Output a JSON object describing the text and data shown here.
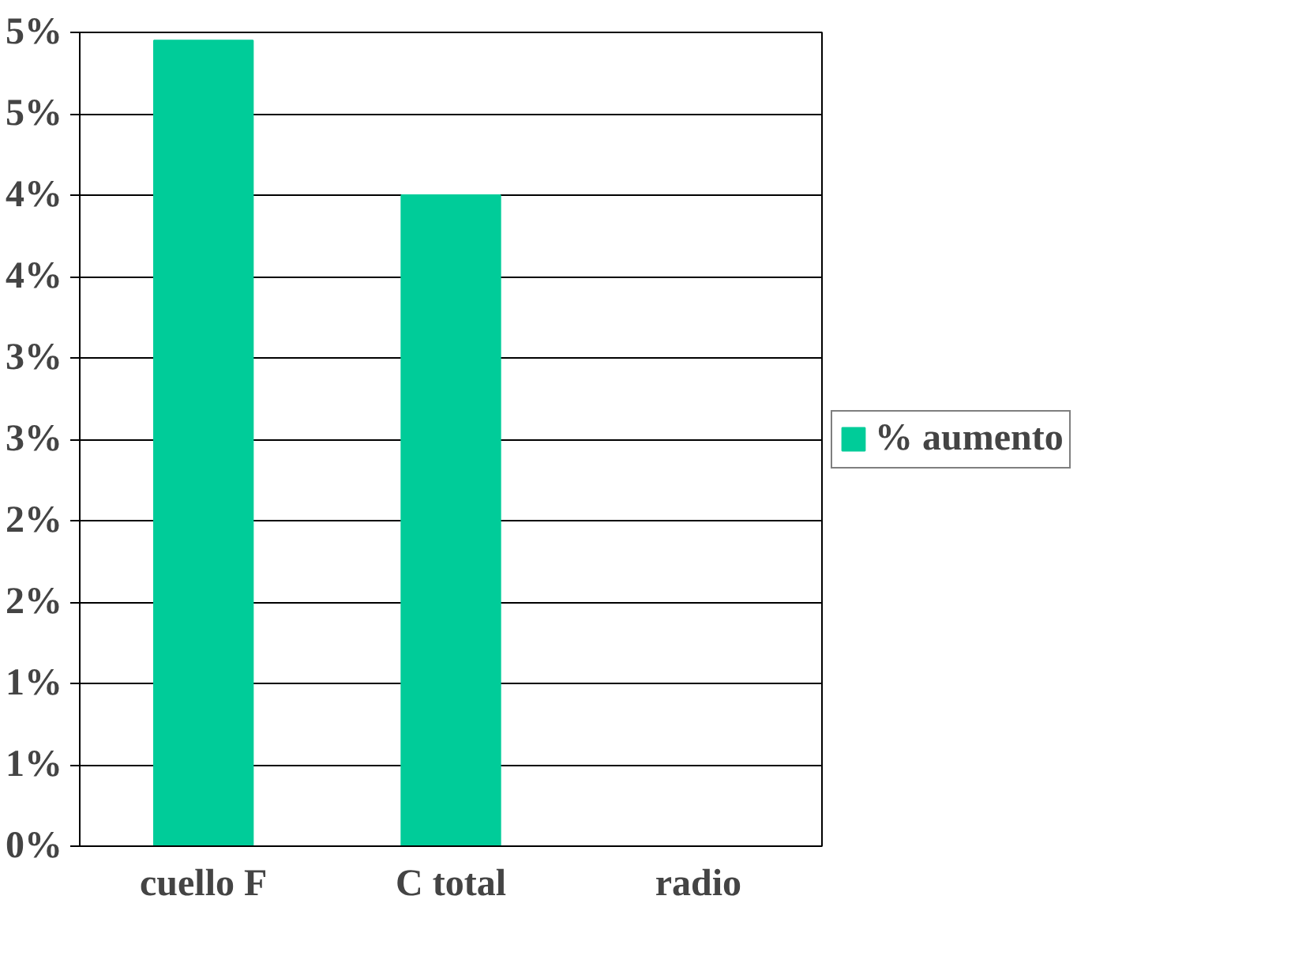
{
  "chart_data": {
    "type": "bar",
    "categories": [
      "cuello F",
      "C total",
      "radio"
    ],
    "series": [
      {
        "name": "% aumento",
        "color": "#00cc99",
        "values": [
          4.95,
          4.0,
          0
        ]
      }
    ],
    "ylim": [
      0,
      5.0
    ],
    "yticks": [
      {
        "value": 0,
        "label": "0%"
      },
      {
        "value": 0.5,
        "label": "1%"
      },
      {
        "value": 1.0,
        "label": "1%"
      },
      {
        "value": 1.5,
        "label": "2%"
      },
      {
        "value": 2.0,
        "label": "2%"
      },
      {
        "value": 2.5,
        "label": "3%"
      },
      {
        "value": 3.0,
        "label": "3%"
      },
      {
        "value": 3.5,
        "label": "4%"
      },
      {
        "value": 4.0,
        "label": "4%"
      },
      {
        "value": 4.5,
        "label": "5%"
      },
      {
        "value": 5.0,
        "label": "5%"
      }
    ],
    "grid": "y",
    "legend": "right"
  }
}
